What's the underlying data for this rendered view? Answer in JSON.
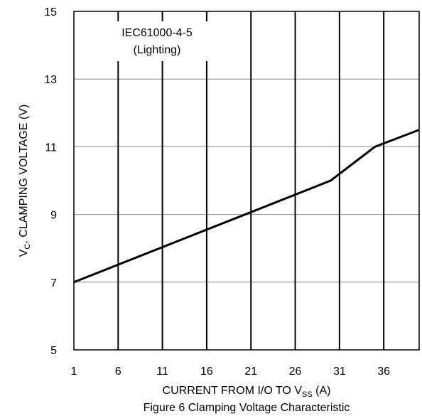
{
  "chart_data": {
    "type": "line",
    "caption": "Figure 6 Clamping Voltage Characteristic",
    "xlabel": {
      "main": "CURRENT FROM I/O TO V",
      "sub": "SS",
      "unit": " (A)"
    },
    "ylabel": {
      "main": "V",
      "sub": "C",
      "rest": ", CLAMPING VOLTAGE (V)"
    },
    "xlim": [
      1,
      40
    ],
    "ylim": [
      5,
      15
    ],
    "x_ticks": [
      1,
      6,
      11,
      16,
      21,
      26,
      31,
      36
    ],
    "y_ticks": [
      5,
      7,
      9,
      11,
      13,
      15
    ],
    "x_gridlines": [
      6,
      11,
      16,
      21,
      26,
      31,
      36
    ],
    "y_gridlines": [
      7,
      9,
      11,
      13
    ],
    "grid": true,
    "annotation": {
      "line1": "IEC61000-4-5",
      "line2": "(Lighting)"
    },
    "series": [
      {
        "x": [
          1,
          30,
          35,
          40
        ],
        "y": [
          7.0,
          10.0,
          11.0,
          11.5
        ]
      }
    ]
  }
}
